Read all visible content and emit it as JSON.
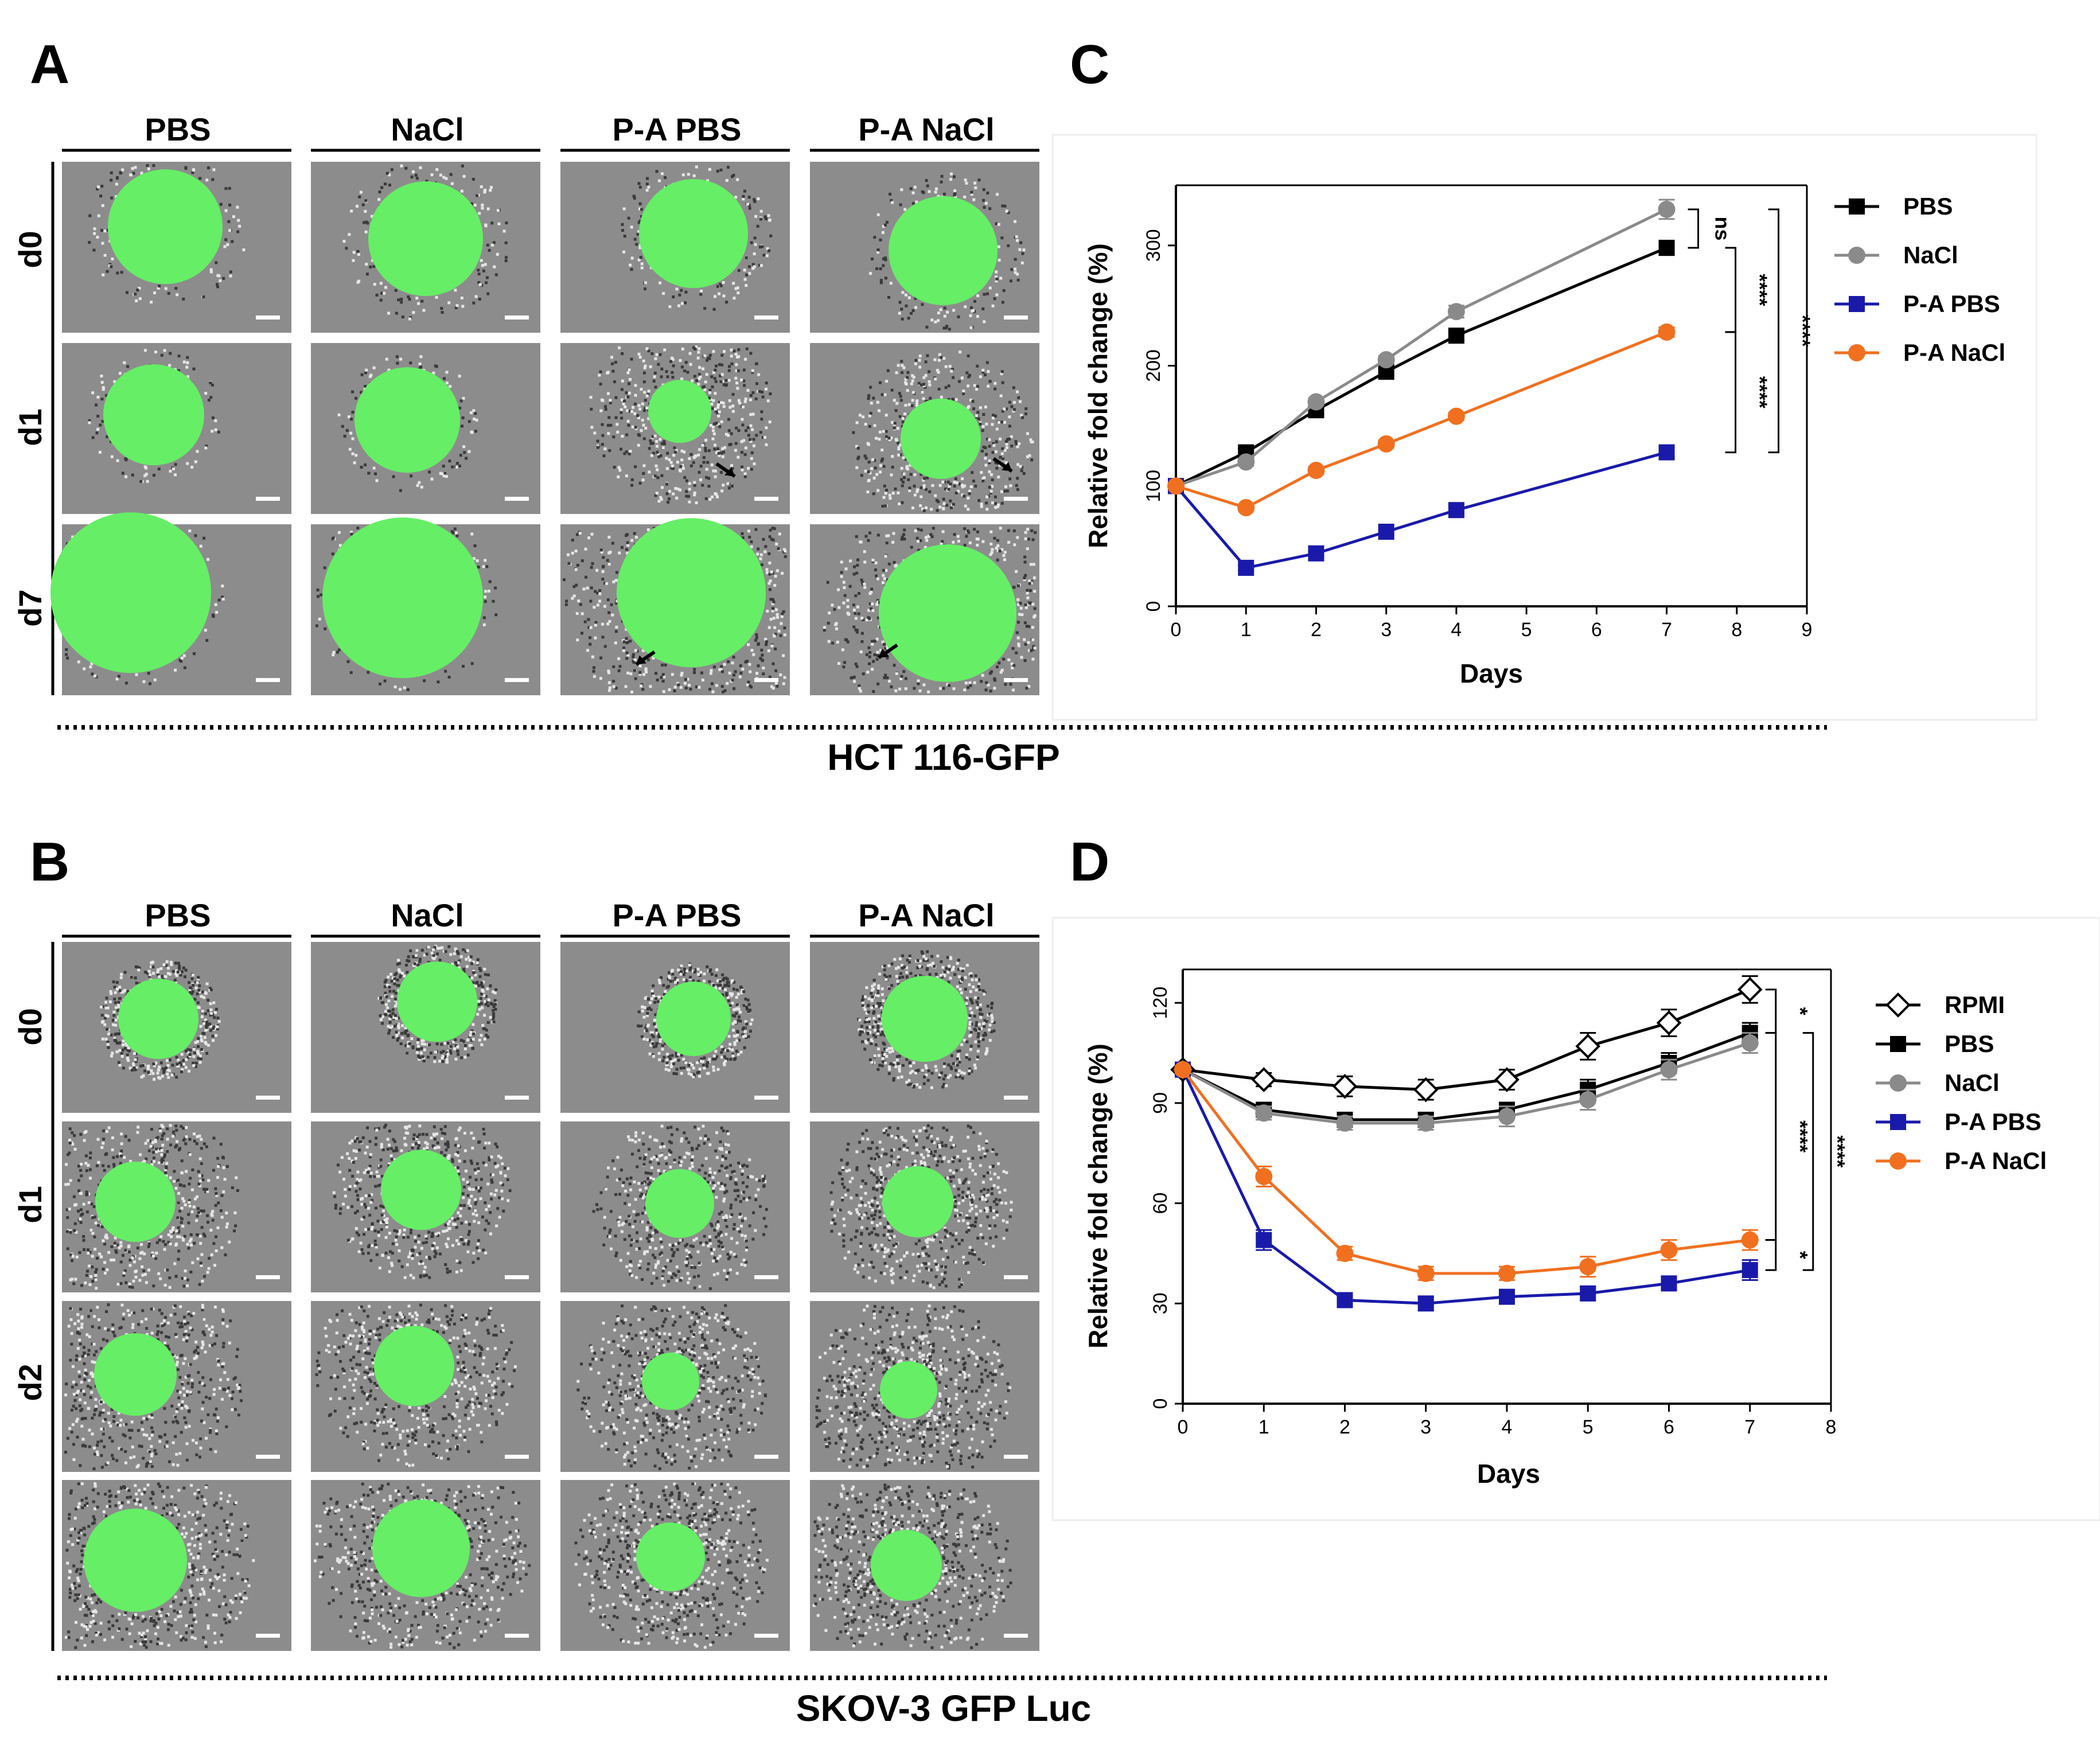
{
  "figure": {
    "panels": [
      {
        "letter": "A"
      },
      {
        "letter": "B"
      },
      {
        "letter": "C"
      },
      {
        "letter": "D"
      }
    ],
    "section_labels": {
      "top": "HCT 116-GFP",
      "bottom": "SKOV-3 GFP Luc"
    },
    "image_grids": [
      {
        "panel": "A",
        "columns": [
          "PBS",
          "NaCl",
          "P-A PBS",
          "P-A NaCl"
        ],
        "rows": [
          "d0",
          "d1",
          "d7"
        ]
      },
      {
        "panel": "B",
        "columns": [
          "PBS",
          "NaCl",
          "P-A PBS",
          "P-A NaCl"
        ],
        "rows": [
          "d0",
          "d1",
          "d2",
          ""
        ]
      }
    ]
  },
  "colors": {
    "gfp": "#66ee66",
    "field": "#8c8c8c",
    "pbs": "#000000",
    "nacl": "#8a8a8a",
    "pa_pbs": "#1a1aaa",
    "pa_nacl": "#f07020"
  },
  "chart_data": [
    {
      "panel": "C",
      "type": "line",
      "xlabel": "Days",
      "ylabel": "Relative fold change (%)",
      "xlim": [
        0,
        9
      ],
      "ylim": [
        0,
        350
      ],
      "xticks": [
        0,
        1,
        2,
        3,
        4,
        5,
        6,
        7,
        8,
        9
      ],
      "yticks": [
        0,
        100,
        200,
        300
      ],
      "x": [
        0,
        1,
        2,
        3,
        4,
        7
      ],
      "series": [
        {
          "name": "PBS",
          "marker": "square",
          "color": "#000000",
          "values": [
            100,
            128,
            163,
            195,
            225,
            298
          ],
          "err": [
            3,
            3,
            3,
            3,
            4,
            6
          ]
        },
        {
          "name": "NaCl",
          "marker": "circle",
          "color": "#8a8a8a",
          "values": [
            100,
            120,
            170,
            205,
            245,
            330
          ],
          "err": [
            3,
            3,
            3,
            3,
            5,
            8
          ]
        },
        {
          "name": "P-A PBS",
          "marker": "square",
          "color": "#1a1aaa",
          "values": [
            100,
            32,
            44,
            62,
            80,
            128
          ],
          "err": [
            2,
            2,
            2,
            2,
            3,
            4
          ]
        },
        {
          "name": "P-A NaCl",
          "marker": "circle",
          "color": "#f07020",
          "values": [
            100,
            82,
            113,
            135,
            158,
            228
          ],
          "err": [
            2,
            2,
            3,
            3,
            3,
            4
          ]
        }
      ],
      "significance": [
        {
          "label": "ns",
          "from": "PBS",
          "to": "NaCl"
        },
        {
          "label": "****",
          "from": "PBS",
          "to": "P-A NaCl"
        },
        {
          "label": "****",
          "from": "P-A NaCl",
          "to": "P-A PBS"
        },
        {
          "label": "****",
          "from": "NaCl",
          "to": "P-A PBS"
        }
      ]
    },
    {
      "panel": "D",
      "type": "line",
      "xlabel": "Days",
      "ylabel": "Relative fold change (%)",
      "xlim": [
        0,
        8
      ],
      "ylim": [
        0,
        130
      ],
      "xticks": [
        0,
        1,
        2,
        3,
        4,
        5,
        6,
        7,
        8
      ],
      "yticks": [
        0,
        30,
        60,
        90,
        120
      ],
      "x": [
        0,
        1,
        2,
        3,
        4,
        5,
        6,
        7
      ],
      "series": [
        {
          "name": "RPMI",
          "marker": "diamond",
          "color": "#000000",
          "values": [
            100,
            97,
            95,
            94,
            97,
            107,
            114,
            124
          ],
          "err": [
            1,
            2,
            3,
            3,
            3,
            4,
            4,
            4
          ]
        },
        {
          "name": "PBS",
          "marker": "square",
          "color": "#000000",
          "values": [
            100,
            88,
            85,
            85,
            88,
            94,
            102,
            111
          ],
          "err": [
            1,
            2,
            2,
            2,
            2,
            3,
            3,
            3
          ]
        },
        {
          "name": "NaCl",
          "marker": "circle",
          "color": "#8a8a8a",
          "values": [
            100,
            87,
            84,
            84,
            86,
            91,
            100,
            108
          ],
          "err": [
            1,
            2,
            2,
            2,
            3,
            3,
            3,
            3
          ]
        },
        {
          "name": "P-A PBS",
          "marker": "square",
          "color": "#1a1aaa",
          "values": [
            100,
            49,
            31,
            30,
            32,
            33,
            36,
            40
          ],
          "err": [
            1,
            3,
            2,
            2,
            2,
            2,
            2,
            3
          ]
        },
        {
          "name": "P-A NaCl",
          "marker": "circle",
          "color": "#f07020",
          "values": [
            100,
            68,
            45,
            39,
            39,
            41,
            46,
            49
          ],
          "err": [
            1,
            3,
            2,
            2,
            2,
            3,
            3,
            3
          ]
        }
      ],
      "significance": [
        {
          "label": "*",
          "from": "RPMI",
          "to": "PBS"
        },
        {
          "label": "****",
          "from": "PBS",
          "to": "P-A NaCl"
        },
        {
          "label": "*",
          "from": "P-A NaCl",
          "to": "P-A PBS"
        },
        {
          "label": "****",
          "from": "PBS",
          "to": "P-A PBS"
        }
      ]
    }
  ]
}
